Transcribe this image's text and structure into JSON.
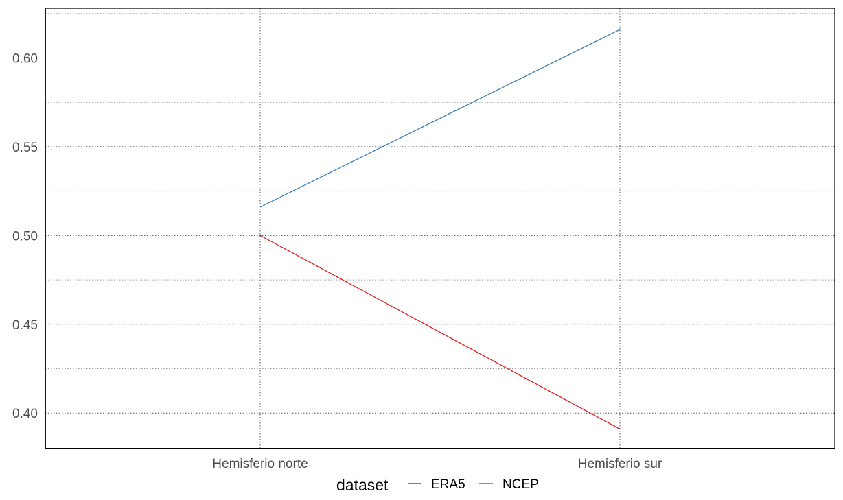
{
  "chart_data": {
    "type": "line",
    "title": "",
    "xlabel": "",
    "ylabel": "",
    "categories": [
      "Hemisferio norte",
      "Hemisferio sur"
    ],
    "series": [
      {
        "name": "ERA5",
        "values": [
          0.5,
          0.391
        ],
        "color": "#e41a1c"
      },
      {
        "name": "NCEP",
        "values": [
          0.516,
          0.616
        ],
        "color": "#377eb8"
      }
    ],
    "ylim": [
      0.38,
      0.628
    ],
    "yticks": [
      0.4,
      0.45,
      0.5,
      0.55,
      0.6
    ],
    "ytick_labels": [
      "0.40",
      "0.45",
      "0.50",
      "0.55",
      "0.60"
    ],
    "grid": true,
    "legend": {
      "title": "dataset",
      "position": "bottom",
      "entries": [
        "ERA5",
        "NCEP"
      ]
    }
  }
}
